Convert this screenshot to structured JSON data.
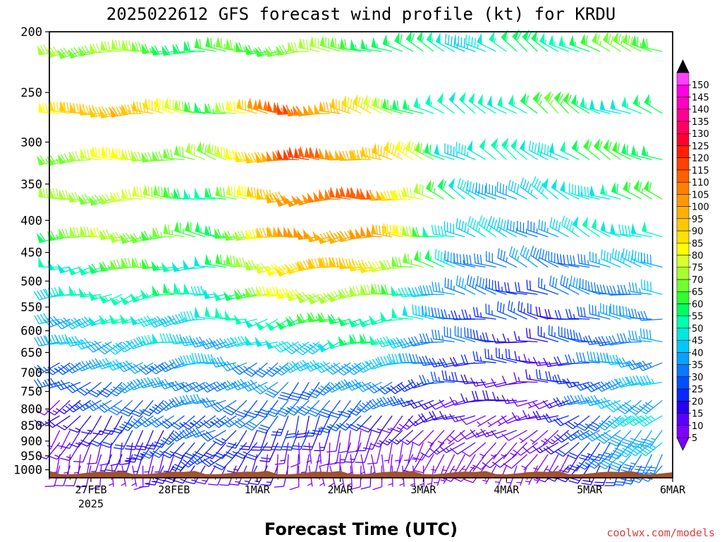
{
  "chart_data": {
    "type": "wind-barb time-height cross section",
    "title": "2025022612 GFS forecast wind profile (kt) for KRDU",
    "xlabel": "Forecast Time (UTC)",
    "credit": "coolwx.com/models",
    "y_axis": {
      "label": "",
      "scale": "log-pressure",
      "range": [
        1030,
        200
      ],
      "ticks": [
        "200",
        "250",
        "300",
        "350",
        "400",
        "450",
        "500",
        "550",
        "600",
        "650",
        "700",
        "750",
        "800",
        "850",
        "900",
        "950",
        "1000"
      ]
    },
    "x_axis": {
      "ticks": [
        {
          "label": "27FEB",
          "sub": "2025"
        },
        {
          "label": "28FEB",
          "sub": ""
        },
        {
          "label": "1MAR",
          "sub": ""
        },
        {
          "label": "2MAR",
          "sub": ""
        },
        {
          "label": "3MAR",
          "sub": ""
        },
        {
          "label": "4MAR",
          "sub": ""
        },
        {
          "label": "5MAR",
          "sub": ""
        },
        {
          "label": "6MAR",
          "sub": ""
        }
      ],
      "start": "2025-02-26 12Z",
      "end": "2025-03-06 00Z",
      "step_hours": 3
    },
    "colorbar": {
      "units": "kt",
      "levels": [
        5,
        10,
        15,
        20,
        25,
        30,
        35,
        40,
        45,
        50,
        55,
        60,
        65,
        70,
        75,
        80,
        85,
        90,
        95,
        100,
        105,
        110,
        115,
        120,
        125,
        130,
        135,
        140,
        145,
        150
      ],
      "colors": [
        "#8000ff",
        "#5a00ff",
        "#2800f0",
        "#0a28ff",
        "#0050ff",
        "#0a78ff",
        "#0aa0ff",
        "#00c8ff",
        "#00e8e0",
        "#00ffb0",
        "#00ff60",
        "#30ff30",
        "#70ff30",
        "#a8ff30",
        "#d8ff30",
        "#ffff00",
        "#ffe000",
        "#ffc800",
        "#ffb000",
        "#ff9800",
        "#ff8000",
        "#ff6000",
        "#ff4000",
        "#ff2000",
        "#ff0030",
        "#ff0060",
        "#ff0090",
        "#ff00c0",
        "#ff00e0",
        "#ff40ff"
      ],
      "under_color": "#8000ff",
      "over_color": "#000000"
    },
    "levels_hpa": [
      215,
      270,
      320,
      370,
      425,
      475,
      525,
      575,
      625,
      675,
      725,
      775,
      820,
      865,
      905,
      945,
      985
    ],
    "wind_time_series": {
      "note": "speed (kt) and direction (deg, from) per level at key forecast days; interpolated between",
      "days": [
        0,
        1,
        2,
        3,
        4,
        5,
        6,
        7
      ],
      "speed": {
        "215": [
          75,
          70,
          58,
          72,
          60,
          48,
          55,
          65
        ],
        "270": [
          78,
          100,
          60,
          118,
          75,
          45,
          62,
          52
        ],
        "320": [
          68,
          80,
          65,
          115,
          95,
          48,
          50,
          60
        ],
        "370": [
          65,
          78,
          55,
          105,
          110,
          45,
          42,
          58
        ],
        "425": [
          62,
          75,
          55,
          100,
          100,
          42,
          38,
          52
        ],
        "475": [
          45,
          65,
          50,
          90,
          90,
          38,
          30,
          40
        ],
        "525": [
          40,
          58,
          48,
          80,
          70,
          32,
          25,
          38
        ],
        "575": [
          40,
          50,
          45,
          58,
          58,
          30,
          20,
          35
        ],
        "625": [
          35,
          45,
          42,
          45,
          55,
          28,
          18,
          35
        ],
        "675": [
          28,
          38,
          38,
          35,
          45,
          25,
          15,
          38
        ],
        "725": [
          20,
          35,
          35,
          32,
          35,
          20,
          12,
          40
        ],
        "775": [
          12,
          30,
          32,
          30,
          30,
          15,
          12,
          42
        ],
        "820": [
          10,
          25,
          30,
          25,
          20,
          12,
          10,
          42
        ],
        "865": [
          8,
          20,
          28,
          18,
          12,
          10,
          8,
          40
        ],
        "905": [
          6,
          18,
          25,
          12,
          8,
          8,
          8,
          38
        ],
        "945": [
          5,
          15,
          22,
          10,
          6,
          6,
          6,
          35
        ],
        "985": [
          5,
          10,
          18,
          8,
          5,
          5,
          5,
          30
        ]
      },
      "direction": {
        "215": [
          260,
          265,
          275,
          265,
          290,
          300,
          305,
          290
        ],
        "270": [
          265,
          270,
          285,
          270,
          290,
          300,
          310,
          290
        ],
        "320": [
          265,
          270,
          285,
          265,
          285,
          300,
          305,
          295
        ],
        "370": [
          265,
          265,
          285,
          260,
          270,
          300,
          300,
          290
        ],
        "425": [
          265,
          260,
          280,
          260,
          265,
          290,
          300,
          290
        ],
        "475": [
          265,
          255,
          275,
          255,
          265,
          290,
          295,
          285
        ],
        "525": [
          260,
          250,
          270,
          250,
          260,
          285,
          290,
          280
        ],
        "575": [
          260,
          245,
          270,
          245,
          260,
          280,
          285,
          275
        ],
        "625": [
          255,
          245,
          265,
          240,
          255,
          275,
          280,
          270
        ],
        "675": [
          250,
          240,
          260,
          230,
          250,
          270,
          275,
          260
        ],
        "725": [
          245,
          235,
          255,
          220,
          240,
          265,
          270,
          250
        ],
        "775": [
          240,
          225,
          250,
          210,
          235,
          260,
          260,
          240
        ],
        "820": [
          230,
          215,
          245,
          200,
          220,
          250,
          250,
          230
        ],
        "865": [
          220,
          205,
          240,
          190,
          205,
          240,
          240,
          225
        ],
        "905": [
          210,
          195,
          235,
          185,
          190,
          230,
          230,
          220
        ],
        "945": [
          200,
          190,
          230,
          180,
          180,
          220,
          220,
          215
        ],
        "985": [
          190,
          180,
          220,
          180,
          170,
          210,
          210,
          210
        ]
      }
    },
    "terrain": {
      "surface_pressure_hpa": 1012,
      "color": "#a0522d"
    }
  }
}
